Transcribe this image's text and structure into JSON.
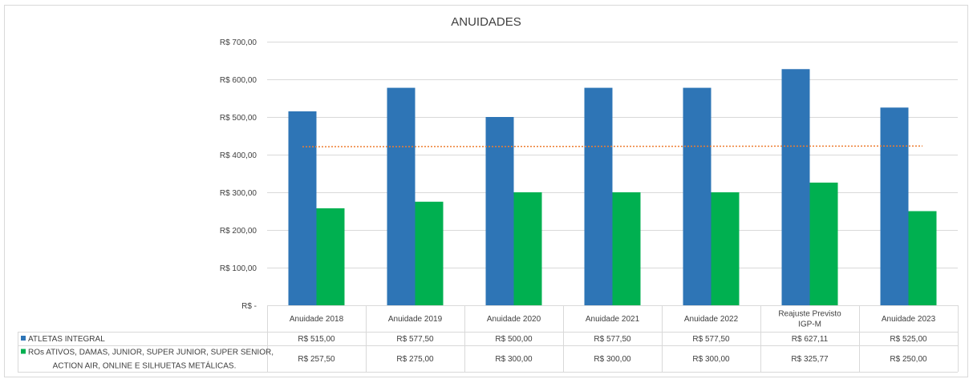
{
  "chart_data": {
    "type": "bar",
    "title": "ANUIDADES",
    "categories": [
      [
        "Anuidade 2018"
      ],
      [
        "Anuidade 2019"
      ],
      [
        "Anuidade 2020"
      ],
      [
        "Anuidade 2021"
      ],
      [
        "Anuidade 2022"
      ],
      [
        "Reajuste Previsto",
        "IGP-M"
      ],
      [
        "Anuidade 2023"
      ]
    ],
    "series": [
      {
        "name": "ATLETAS INTEGRAL",
        "name_lines": [
          "ATLETAS INTEGRAL"
        ],
        "color": "#2E75B6",
        "values": [
          515.0,
          577.5,
          500.0,
          577.5,
          577.5,
          627.11,
          525.0
        ],
        "labels": [
          "R$ 515,00",
          "R$ 577,50",
          "R$ 500,00",
          "R$ 577,50",
          "R$ 577,50",
          "R$ 627,11",
          "R$ 525,00"
        ]
      },
      {
        "name": "ROs ATIVOS, DAMAS, JUNIOR, SUPER JUNIOR, SUPER SENIOR, ACTION AIR, ONLINE E SILHUETAS METÁLICAS.",
        "name_lines": [
          "ROs ATIVOS, DAMAS, JUNIOR, SUPER JUNIOR, SUPER SENIOR,",
          "ACTION AIR, ONLINE E SILHUETAS METÁLICAS."
        ],
        "color": "#00B050",
        "values": [
          257.5,
          275.0,
          300.0,
          300.0,
          300.0,
          325.77,
          250.0
        ],
        "labels": [
          "R$ 257,50",
          "R$ 275,00",
          "R$ 300,00",
          "R$ 300,00",
          "R$ 300,00",
          "R$ 325,77",
          "R$ 250,00"
        ]
      }
    ],
    "y_ticks": [
      {
        "value": 0,
        "label": "R$ -"
      },
      {
        "value": 100,
        "label": "R$ 100,00"
      },
      {
        "value": 200,
        "label": "R$ 200,00"
      },
      {
        "value": 300,
        "label": "R$ 300,00"
      },
      {
        "value": 400,
        "label": "R$ 400,00"
      },
      {
        "value": 500,
        "label": "R$ 500,00"
      },
      {
        "value": 600,
        "label": "R$ 600,00"
      },
      {
        "value": 700,
        "label": "R$ 700,00"
      }
    ],
    "ylim": [
      0,
      700
    ],
    "grid": true,
    "trendline": {
      "type": "linear",
      "series": "all",
      "color": "#ED7D31",
      "style": "dotted"
    },
    "legend": "data table below the chart"
  }
}
